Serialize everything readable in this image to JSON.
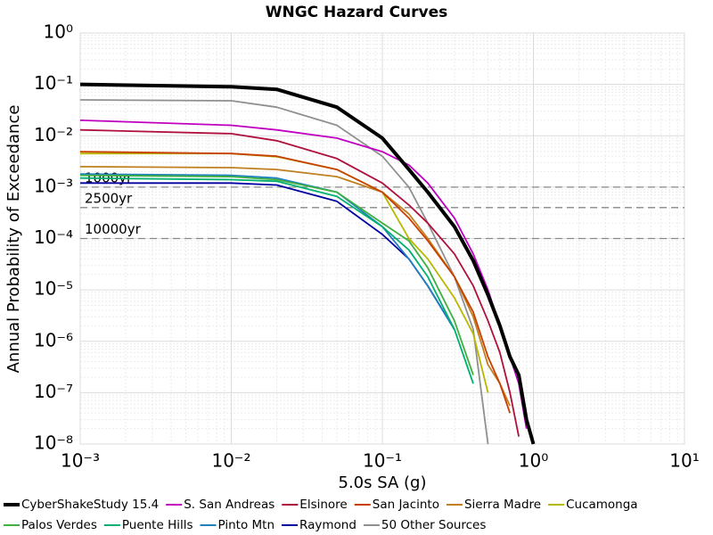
{
  "chart_data": {
    "type": "line",
    "title": "WNGC Hazard Curves",
    "x_label": "5.0s SA (g)",
    "y_label": "Annual Probability of Exceedance",
    "xlog": true,
    "ylog": true,
    "grid": true,
    "xlim": [
      0.001,
      10
    ],
    "ylim": [
      1e-08,
      1
    ],
    "xticks": [
      {
        "value": 0.001,
        "label": "10⁻³"
      },
      {
        "value": 0.01,
        "label": "10⁻²"
      },
      {
        "value": 0.1,
        "label": "10⁻¹"
      },
      {
        "value": 1,
        "label": "10⁰"
      },
      {
        "value": 10,
        "label": "10¹"
      }
    ],
    "yticks": [
      {
        "value": 1,
        "label": "10⁰"
      },
      {
        "value": 0.1,
        "label": "10⁻¹"
      },
      {
        "value": 0.01,
        "label": "10⁻²"
      },
      {
        "value": 0.001,
        "label": "10⁻³"
      },
      {
        "value": 0.0001,
        "label": "10⁻⁴"
      },
      {
        "value": 1e-05,
        "label": "10⁻⁵"
      },
      {
        "value": 1e-06,
        "label": "10⁻⁶"
      },
      {
        "value": 1e-07,
        "label": "10⁻⁷"
      },
      {
        "value": 1e-08,
        "label": "10⁻⁸"
      }
    ],
    "reference_lines": [
      {
        "label": "1000yr",
        "value": 0.001
      },
      {
        "label": "2500yr",
        "value": 0.0004
      },
      {
        "label": "10000yr",
        "value": 0.0001
      }
    ],
    "x": [
      0.001,
      0.01,
      0.02,
      0.05,
      0.1,
      0.15,
      0.2,
      0.3,
      0.4,
      0.5,
      0.6,
      0.7,
      0.8,
      0.9,
      1.0
    ],
    "series": [
      {
        "name": "CyberShakeStudy 15.4",
        "color": "#000000",
        "values": [
          0.1,
          0.09,
          0.08,
          0.036,
          0.009,
          0.0022,
          0.0008,
          0.00017,
          3.7e-05,
          8e-06,
          2e-06,
          5e-07,
          2.2e-07,
          3e-08,
          1e-08
        ]
      },
      {
        "name": "S. San Andreas",
        "color": "#c000c0",
        "values": [
          0.02,
          0.016,
          0.013,
          0.009,
          0.0049,
          0.0027,
          0.0012,
          0.00025,
          5e-05,
          1e-05,
          2e-06,
          5e-07,
          1.5e-07,
          2e-08,
          null
        ]
      },
      {
        "name": "Elsinore",
        "color": "#b0103c",
        "values": [
          0.013,
          0.011,
          0.008,
          0.0036,
          0.0012,
          0.00045,
          0.0002,
          5e-05,
          1.2e-05,
          2.5e-06,
          6e-07,
          1e-07,
          1.4e-08,
          null,
          null
        ]
      },
      {
        "name": "San Jacinto",
        "color": "#c84000",
        "values": [
          0.0049,
          0.0045,
          0.004,
          0.0022,
          0.0008,
          0.00025,
          9e-05,
          1.8e-05,
          3.7e-06,
          5e-07,
          1.5e-07,
          4e-08,
          null,
          null,
          null
        ]
      },
      {
        "name": "Sierra Madre",
        "color": "#c08020",
        "values": [
          0.0025,
          0.0024,
          0.0022,
          0.0016,
          0.0008,
          0.0003,
          0.0001,
          1.8e-05,
          3e-06,
          3.5e-07,
          1.5e-07,
          5.5e-08,
          null,
          null,
          null
        ]
      },
      {
        "name": "Cucamonga",
        "color": "#b8b800",
        "values": [
          0.0045,
          0.0045,
          0.0039,
          0.0022,
          0.0008,
          0.0001,
          4e-05,
          7e-06,
          1.4e-06,
          1e-07,
          null,
          null,
          null,
          null,
          null
        ]
      },
      {
        "name": "Palos Verdes",
        "color": "#40b040",
        "values": [
          0.0017,
          0.0016,
          0.0014,
          0.0008,
          0.0002,
          9e-05,
          2.7e-05,
          2.5e-06,
          2.2e-07,
          null,
          null,
          null,
          null,
          null,
          null
        ]
      },
      {
        "name": "Puente Hills",
        "color": "#00b070",
        "values": [
          0.0015,
          0.0014,
          0.0013,
          0.00066,
          0.00017,
          6e-05,
          1.8e-05,
          1.7e-06,
          1.5e-07,
          null,
          null,
          null,
          null,
          null,
          null
        ]
      },
      {
        "name": "Pinto Mtn",
        "color": "#2080c0",
        "values": [
          0.0018,
          0.0017,
          0.0015,
          0.0008,
          0.00017,
          4e-05,
          1.2e-05,
          1.7e-06,
          null,
          null,
          null,
          null,
          null,
          null,
          null
        ]
      },
      {
        "name": "Raymond",
        "color": "#0000a0",
        "values": [
          0.0012,
          0.0012,
          0.0011,
          0.00053,
          0.00012,
          4e-05,
          1.2e-05,
          1.7e-06,
          null,
          null,
          null,
          null,
          null,
          null,
          null
        ]
      },
      {
        "name": "50 Other Sources",
        "color": "#909090",
        "values": [
          0.05,
          0.048,
          0.036,
          0.016,
          0.004,
          0.001,
          0.0002,
          1.8e-05,
          1.7e-06,
          1e-08,
          null,
          null,
          null,
          null,
          null
        ]
      }
    ]
  }
}
